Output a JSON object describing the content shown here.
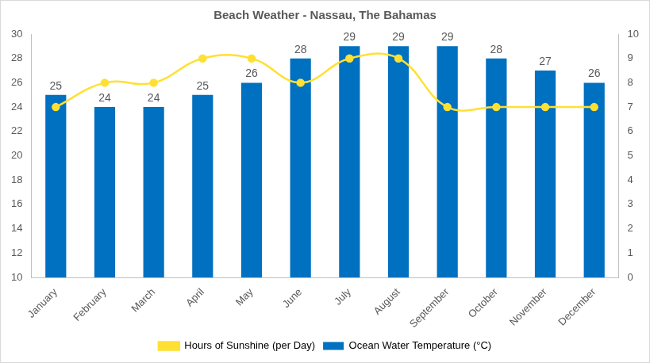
{
  "chart_data": {
    "type": "bar",
    "title": "Beach Weather - Nassau, The Bahamas",
    "categories": [
      "January",
      "February",
      "March",
      "April",
      "May",
      "June",
      "July",
      "August",
      "September",
      "October",
      "November",
      "December"
    ],
    "series": [
      {
        "name": "Ocean Water Temperature (°C)",
        "type": "bar",
        "color": "#0070c0",
        "data_labels": true,
        "values": [
          25,
          24,
          24,
          25,
          26,
          28,
          29,
          29,
          29,
          28,
          27,
          26
        ]
      },
      {
        "name": "Hours of Sunshine (per Day)",
        "type": "line",
        "color": "#ffe033",
        "axis": "y2",
        "marker": "circle",
        "line_style": "solid",
        "values": [
          7,
          8,
          8,
          9,
          9,
          8,
          9,
          9,
          7,
          7,
          7,
          7
        ]
      }
    ],
    "ylim": [
      10,
      30
    ],
    "yticks": [
      10,
      12,
      14,
      16,
      18,
      20,
      22,
      24,
      26,
      28,
      30
    ],
    "y2lim": [
      0,
      10
    ],
    "y2ticks": [
      0,
      1,
      2,
      3,
      4,
      5,
      6,
      7,
      8,
      9,
      10
    ],
    "grid": false,
    "legend": "bottom"
  }
}
